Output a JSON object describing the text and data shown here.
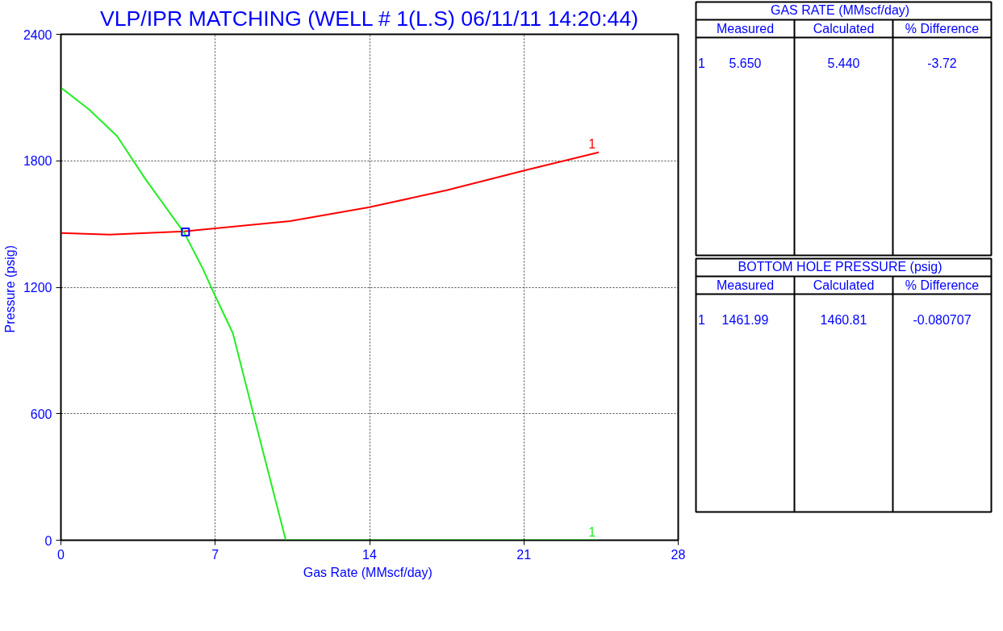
{
  "chart_data": [
    {
      "type": "line",
      "title": "VLP/IPR MATCHING (WELL # 1(L.S) 06/11/11 14:20:44)",
      "xlabel": "Gas Rate  (MMscf/day)",
      "ylabel": "Pressure  (psig)",
      "xlim": [
        0,
        28
      ],
      "ylim": [
        0,
        2400
      ],
      "xticks": [
        0,
        7,
        14,
        21,
        28
      ],
      "yticks": [
        0,
        600,
        1200,
        1800,
        2400
      ],
      "grid": true,
      "series": [
        {
          "name": "1",
          "color": "#ff0000",
          "x": [
            0,
            2.2,
            5.6,
            10.4,
            14,
            17.5,
            21.1,
            24.4
          ],
          "values": [
            1457,
            1450,
            1465,
            1514,
            1580,
            1660,
            1756,
            1840
          ]
        },
        {
          "name": "1",
          "color": "#22ee22",
          "x": [
            0,
            1.27,
            2.55,
            3.8,
            5.6,
            6.4,
            6.9,
            7.8,
            8.9,
            10.2,
            24.4
          ],
          "values": [
            2147,
            2044,
            1917,
            1718,
            1457,
            1296,
            1181,
            982,
            529,
            0,
            0
          ]
        },
        {
          "type": "scatter",
          "marker": "square",
          "color": "#0000ff",
          "x": [
            5.65
          ],
          "values": [
            1462
          ]
        }
      ]
    },
    {
      "type": "other",
      "title": "GAS RATE   (MMscf/day)",
      "annotations": [
        "Measured",
        "Calculated",
        "% Difference",
        "1",
        "5.650",
        "5.440",
        "-3.72"
      ]
    },
    {
      "type": "other",
      "title": "BOTTOM HOLE PRESSURE   (psig)",
      "annotations": [
        "Measured",
        "Calculated",
        "% Difference",
        "1",
        "1461.99",
        "1460.81",
        "-0.080707"
      ]
    }
  ]
}
